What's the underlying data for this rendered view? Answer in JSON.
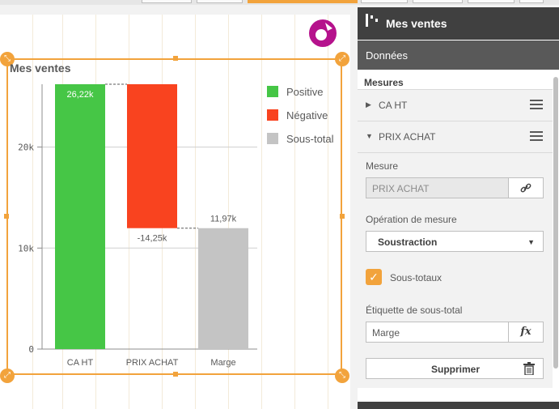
{
  "chart": {
    "title": "Mes ventes"
  },
  "chart_data": {
    "type": "bar",
    "title": "Mes ventes",
    "categories": [
      "CA HT",
      "PRIX ACHAT",
      "Marge"
    ],
    "values": [
      26.22,
      -14.25,
      11.97
    ],
    "units": "k",
    "data_labels": [
      "26,22k",
      "-14,25k",
      "11,97k"
    ],
    "y_ticks": [
      "0",
      "10k",
      "20k"
    ],
    "ylim": [
      0,
      26.22
    ],
    "grid": true,
    "legend_position": "right",
    "legend": [
      {
        "label": "Positive",
        "color": "#46c646"
      },
      {
        "label": "Négative",
        "color": "#f9431f"
      },
      {
        "label": "Sous-total",
        "color": "#c4c4c4"
      }
    ],
    "colors": {
      "positive": "#46c646",
      "negative": "#f9431f",
      "subtotal": "#c4c4c4"
    }
  },
  "panel": {
    "title": "Mes ventes",
    "tab_label": "Données",
    "section_label": "Mesures",
    "measures": [
      {
        "label": "CA HT",
        "expanded": false
      },
      {
        "label": "PRIX ACHAT",
        "expanded": true
      }
    ],
    "mesure_label": "Mesure",
    "mesure_value": "PRIX ACHAT",
    "operation_label": "Opération de mesure",
    "operation_value": "Soustraction",
    "subtotals_label": "Sous-totaux",
    "subtotals_checked": true,
    "subtotal_label_title": "Étiquette de sous-total",
    "subtotal_label_value": "Marge",
    "fx_label": "fx",
    "delete_label": "Supprimer"
  },
  "colors": {
    "accent": "#f2a33c",
    "header_dark": "#404040",
    "tab_dark": "#595959",
    "logo": "#b5128c"
  },
  "icons": [
    "chart-logo-icon",
    "bar-chart-icon",
    "link-icon",
    "trash-icon",
    "menu-icon",
    "chevron-down-icon",
    "caret-right-icon",
    "caret-down-icon",
    "check-icon"
  ]
}
